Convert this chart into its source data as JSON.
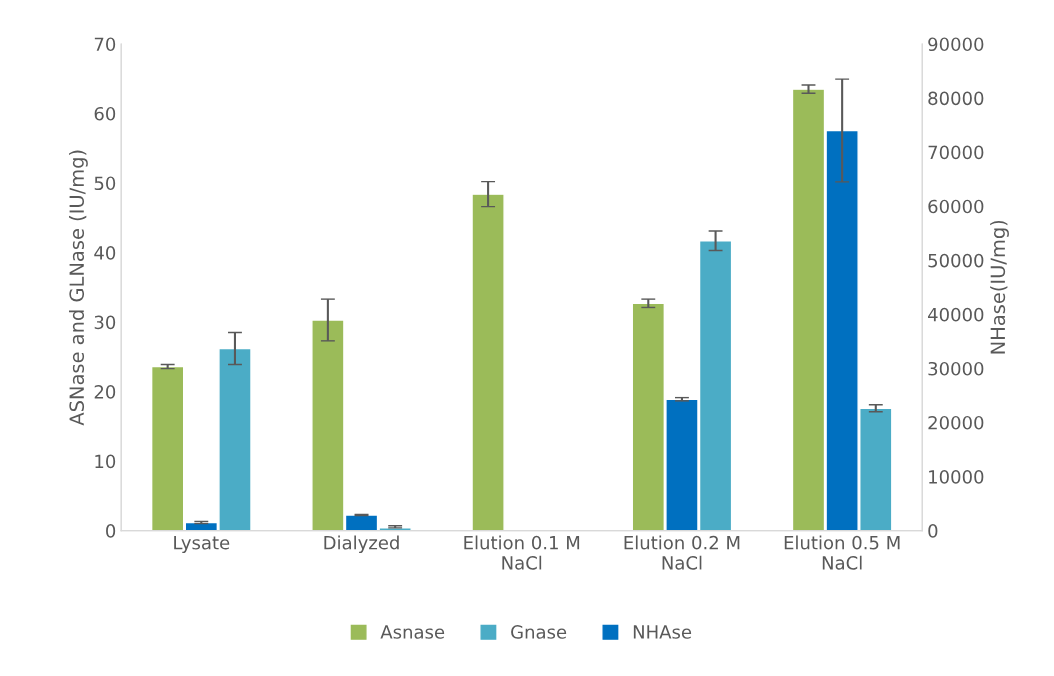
{
  "chart_data": {
    "type": "bar",
    "categories": [
      "Lysate",
      "Dialyzed",
      "Elution 0.1 M\nNaCl",
      "Elution 0.2 M\nNaCl",
      "Elution 0.5 M\nNaCl"
    ],
    "series": [
      {
        "name": "Asnase",
        "color": "#9bbb59",
        "values": [
          23.6,
          30.3,
          48.4,
          32.7,
          63.5
        ],
        "errors": [
          0.3,
          3,
          1.8,
          0.6,
          0.6
        ]
      },
      {
        "name": "NHAse",
        "color": "#0070c0",
        "axis": "y2",
        "values": [
          1500,
          2900,
          null,
          24300,
          74000
        ],
        "errors": [
          200,
          100,
          null,
          300,
          9500
        ]
      },
      {
        "name": "Gnase",
        "color": "#4bacc6",
        "values": [
          26.2,
          0.4,
          null,
          41.7,
          17.6
        ],
        "errors": [
          2.3,
          [
            0.4,
            0.7
          ],
          null,
          1.4,
          0.5
        ]
      }
    ],
    "ylabel": "ASNase and GLNase (IU/mg)",
    "y2label": "NHase(IU/mg)",
    "ylim": [
      0,
      70
    ],
    "yticks": [
      0,
      10,
      20,
      30,
      40,
      50,
      60,
      70
    ],
    "y2lim": [
      0,
      90000
    ],
    "y2ticks": [
      0,
      10000,
      20000,
      30000,
      40000,
      50000,
      60000,
      70000,
      80000,
      90000
    ],
    "grid": false,
    "legend": "bottom"
  }
}
